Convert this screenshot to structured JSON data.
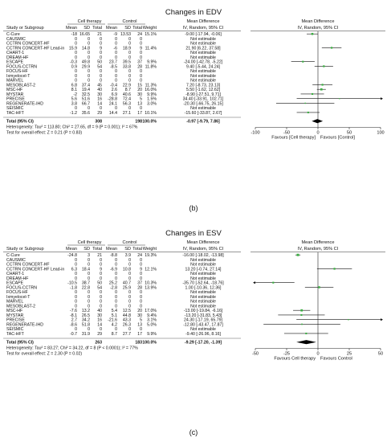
{
  "chart_data": [
    {
      "type": "forest",
      "title": "Changes in EDV",
      "caption": "(b)",
      "headers": {
        "group_exp": "Cell therapy",
        "group_ctrl": "Control",
        "study": "Study or Subgroup",
        "mean": "Mean",
        "sd": "SD",
        "total": "Total",
        "weight": "Weight",
        "md": "Mean Difference",
        "md_method": "IV, Random, 95% CI"
      },
      "rows": [
        {
          "study": "C-Cure",
          "e_mean": "-18",
          "e_sd": "16.65",
          "e_n": "21",
          "c_mean": "-9",
          "c_sd": "13.53",
          "c_n": "24",
          "weight": "15.1%",
          "ci": "-9.00 [-17.94, -0.06]",
          "md": -9.0,
          "lo": -17.94,
          "hi": -0.06
        },
        {
          "study": "CAUSMIC",
          "e_mean": "0",
          "e_sd": "0",
          "e_n": "0",
          "c_mean": "0",
          "c_sd": "0",
          "c_n": "0",
          "weight": "",
          "ci": "Not estimable"
        },
        {
          "study": "CCTRN CONCERT-HF",
          "e_mean": "0",
          "e_sd": "0",
          "e_n": "0",
          "c_mean": "0",
          "c_sd": "0",
          "c_n": "0",
          "weight": "",
          "ci": "Not estimable"
        },
        {
          "study": "CCTRN CONCERT-HF Lead-in",
          "e_mean": "15.9",
          "e_sd": "14.8",
          "e_n": "9",
          "c_mean": "-6",
          "c_sd": "18.9",
          "c_n": "9",
          "weight": "11.4%",
          "ci": "21.90 [6.22, 37.58]",
          "md": 21.9,
          "lo": 6.22,
          "hi": 37.58
        },
        {
          "study": "CHART-1",
          "e_mean": "0",
          "e_sd": "0",
          "e_n": "0",
          "c_mean": "0",
          "c_sd": "0",
          "c_n": "0",
          "weight": "",
          "ci": "Not estimable"
        },
        {
          "study": "DREAM-HF",
          "e_mean": "0",
          "e_sd": "0",
          "e_n": "0",
          "c_mean": "0",
          "c_sd": "0",
          "c_n": "0",
          "weight": "",
          "ci": "Not estimable"
        },
        {
          "study": "ESCAPE",
          "e_mean": "-0.3",
          "e_sd": "49.8",
          "e_n": "50",
          "c_mean": "23.7",
          "c_sd": "39.5",
          "c_n": "37",
          "weight": "9.9%",
          "ci": "-24.00 [-42.78, -5.22]",
          "md": -24.0,
          "lo": -42.78,
          "hi": -5.22
        },
        {
          "study": "FOCUS-CCTRN",
          "e_mean": "0.9",
          "e_sd": "29.9",
          "e_n": "54",
          "c_mean": "-8.5",
          "c_sd": "33.8",
          "c_n": "28",
          "weight": "11.8%",
          "ci": "9.40 [-5.44, 24.24]",
          "md": 9.4,
          "lo": -5.44,
          "hi": 24.24
        },
        {
          "study": "FOCUS-HF",
          "e_mean": "0",
          "e_sd": "0",
          "e_n": "0",
          "c_mean": "0",
          "c_sd": "0",
          "c_n": "0",
          "weight": "",
          "ci": "Not estimable"
        },
        {
          "study": "Ixmyelocel-T",
          "e_mean": "0",
          "e_sd": "0",
          "e_n": "0",
          "c_mean": "0",
          "c_sd": "0",
          "c_n": "0",
          "weight": "",
          "ci": "Not estimable"
        },
        {
          "study": "MARVEL",
          "e_mean": "0",
          "e_sd": "0",
          "e_n": "0",
          "c_mean": "0",
          "c_sd": "0",
          "c_n": "0",
          "weight": "",
          "ci": "Not estimable"
        },
        {
          "study": "MESOBLAST-2",
          "e_mean": "6.8",
          "e_sd": "37.4",
          "e_n": "45",
          "c_mean": "-0.4",
          "c_sd": "22.9",
          "c_n": "15",
          "weight": "11.3%",
          "ci": "7.20 [-8.73, 23.13]",
          "md": 7.2,
          "lo": -8.73,
          "hi": 23.13
        },
        {
          "study": "MSC-HF",
          "e_mean": "8.1",
          "e_sd": "19.4",
          "e_n": "40",
          "c_mean": "2.6",
          "c_sd": "8.7",
          "c_n": "20",
          "weight": "16.0%",
          "ci": "5.50 [-1.62, 12.62]",
          "md": 5.5,
          "lo": -1.62,
          "hi": 12.62
        },
        {
          "study": "MYSTAR",
          "e_mean": "-2",
          "e_sd": "32.5",
          "e_n": "30",
          "c_mean": "6.9",
          "c_sd": "40.6",
          "c_n": "30",
          "weight": "9.9%",
          "ci": "-8.90 [-27.51, 9.71]",
          "md": -8.9,
          "lo": -27.51,
          "hi": 9.71
        },
        {
          "study": "PRECISE",
          "e_mean": "5.6",
          "e_sd": "51.6",
          "e_n": "16",
          "c_mean": "-28.8",
          "c_sd": "72.4",
          "c_n": "5",
          "weight": "1.5%",
          "ci": "34.40 [-33.91, 102.71]",
          "md": 34.4,
          "lo": -33.91,
          "hi": 102.71
        },
        {
          "study": "REGENERATE-IHD",
          "e_mean": "3.8",
          "e_sd": "66.7",
          "e_n": "14",
          "c_mean": "24.1",
          "c_sd": "56.3",
          "c_n": "13",
          "weight": "3.0%",
          "ci": "-20.30 [-66.75, 26.15]",
          "md": -20.3,
          "lo": -66.75,
          "hi": 26.15
        },
        {
          "study": "SEISMIC",
          "e_mean": "0",
          "e_sd": "0",
          "e_n": "0",
          "c_mean": "0",
          "c_sd": "0",
          "c_n": "0",
          "weight": "",
          "ci": "Not estimable"
        },
        {
          "study": "TAC-HFT",
          "e_mean": "-1.2",
          "e_sd": "35.6",
          "e_n": "29",
          "c_mean": "14.4",
          "c_sd": "27.1",
          "c_n": "17",
          "weight": "10.1%",
          "ci": "-15.60 [-33.87, 2.67]",
          "md": -15.6,
          "lo": -33.87,
          "hi": 2.67
        }
      ],
      "total": {
        "label": "Total (95% CI)",
        "e_n": "308",
        "c_n": "198",
        "weight": "100.0%",
        "ci": "-0.97 [-9.79, 7.86]",
        "md": -0.97,
        "lo": -9.79,
        "hi": 7.86
      },
      "heterogeneity": "Heterogeneity: Tau² = 113.80; Chi² = 27.65, df = 9 (P = 0.001); I² = 67%",
      "overall_test": "Test for overall effect: Z = 0.21 (P = 0.83)",
      "xlim": [
        -100,
        100
      ],
      "ticks": [
        -100,
        -50,
        0,
        50,
        100
      ],
      "tick_labels": [
        "-100",
        "-50",
        "0",
        "50",
        "100"
      ],
      "favours_left": "Favours [Cell therapy]",
      "favours_right": "Favours [Control]"
    },
    {
      "type": "forest",
      "title": "Changes in ESV",
      "caption": "(c)",
      "headers": {
        "group_exp": "Cell therapy",
        "group_ctrl": "Control",
        "study": "Study or Subgroup",
        "mean": "Mean",
        "sd": "SD",
        "total": "Total",
        "weight": "Weight",
        "md": "Mean Difference",
        "md_method": "IV, Random, 95% CI"
      },
      "rows": [
        {
          "study": "C-Cure",
          "e_mean": "-24.8",
          "e_sd": "3",
          "e_n": "21",
          "c_mean": "-8.8",
          "c_sd": "3.9",
          "c_n": "24",
          "weight": "19.3%",
          "ci": "-16.00 [-18.02, -13.98]",
          "md": -16.0,
          "lo": -18.02,
          "hi": -13.98
        },
        {
          "study": "CAUSMIC",
          "e_mean": "0",
          "e_sd": "0",
          "e_n": "0",
          "c_mean": "0",
          "c_sd": "0",
          "c_n": "0",
          "weight": "",
          "ci": "Not estimable"
        },
        {
          "study": "CCTRN CONCERT-HF",
          "e_mean": "0",
          "e_sd": "0",
          "e_n": "0",
          "c_mean": "0",
          "c_sd": "0",
          "c_n": "0",
          "weight": "",
          "ci": "Not estimable"
        },
        {
          "study": "CCTRN CONCERT-HF Lead-in",
          "e_mean": "6.3",
          "e_sd": "18.4",
          "e_n": "9",
          "c_mean": "-6.9",
          "c_sd": "10.8",
          "c_n": "9",
          "weight": "12.1%",
          "ci": "13.20 [-0.74, 27.14]",
          "md": 13.2,
          "lo": -0.74,
          "hi": 27.14
        },
        {
          "study": "CHART-1",
          "e_mean": "0",
          "e_sd": "0",
          "e_n": "0",
          "c_mean": "0",
          "c_sd": "0",
          "c_n": "0",
          "weight": "",
          "ci": "Not estimable"
        },
        {
          "study": "DREAM-HF",
          "e_mean": "0",
          "e_sd": "0",
          "e_n": "0",
          "c_mean": "0",
          "c_sd": "0",
          "c_n": "0",
          "weight": "",
          "ci": "Not estimable"
        },
        {
          "study": "ESCAPE",
          "e_mean": "-10.5",
          "e_sd": "38.7",
          "e_n": "50",
          "c_mean": "25.2",
          "c_sd": "40.7",
          "c_n": "37",
          "weight": "10.3%",
          "ci": "-35.70 [-52.64, -18.76]",
          "md": -35.7,
          "lo": -52.64,
          "hi": -18.76
        },
        {
          "study": "FOCUS-CCTRN",
          "e_mean": "-1.8",
          "e_sd": "22.8",
          "e_n": "54",
          "c_mean": "-2.8",
          "c_sd": "25.9",
          "c_n": "28",
          "weight": "13.9%",
          "ci": "1.00 [-10.36, 12.36]",
          "md": 1.0,
          "lo": -10.36,
          "hi": 12.36
        },
        {
          "study": "FOCUS-HF",
          "e_mean": "0",
          "e_sd": "0",
          "e_n": "0",
          "c_mean": "0",
          "c_sd": "0",
          "c_n": "0",
          "weight": "",
          "ci": "Not estimable"
        },
        {
          "study": "Ixmyelocel-T",
          "e_mean": "0",
          "e_sd": "0",
          "e_n": "0",
          "c_mean": "0",
          "c_sd": "0",
          "c_n": "0",
          "weight": "",
          "ci": "Not estimable"
        },
        {
          "study": "MARVEL",
          "e_mean": "0",
          "e_sd": "0",
          "e_n": "0",
          "c_mean": "0",
          "c_sd": "0",
          "c_n": "0",
          "weight": "",
          "ci": "Not estimable"
        },
        {
          "study": "MESOBLAST-2",
          "e_mean": "0",
          "e_sd": "0",
          "e_n": "0",
          "c_mean": "0",
          "c_sd": "0",
          "c_n": "0",
          "weight": "",
          "ci": "Not estimable"
        },
        {
          "study": "MSC-HF",
          "e_mean": "-7.6",
          "e_sd": "13.2",
          "e_n": "40",
          "c_mean": "5.4",
          "c_sd": "12.5",
          "c_n": "20",
          "weight": "17.0%",
          "ci": "-13.00 [-19.84, -6.16]",
          "md": -13.0,
          "lo": -19.84,
          "hi": -6.16
        },
        {
          "study": "MYSTAR",
          "e_mean": "-8.1",
          "e_sd": "26.5",
          "e_n": "30",
          "c_mean": "5.1",
          "c_sd": "44.8",
          "c_n": "30",
          "weight": "9.4%",
          "ci": "-13.20 [-31.83, 5.43]",
          "md": -13.2,
          "lo": -31.83,
          "hi": 5.43
        },
        {
          "study": "PRECISE",
          "e_mean": "2.7",
          "e_sd": "34.2",
          "e_n": "16",
          "c_mean": "-21.6",
          "c_sd": "43.3",
          "c_n": "5",
          "weight": "3.1%",
          "ci": "24.30 [-17.19, 65.79]",
          "md": 24.3,
          "lo": -17.19,
          "hi": 65.79
        },
        {
          "study": "REGENERATE-IHD",
          "e_mean": "-8.6",
          "e_sd": "51.8",
          "e_n": "14",
          "c_mean": "4.2",
          "c_sd": "26.3",
          "c_n": "13",
          "weight": "5.0%",
          "ci": "-12.80 [-43.47, 17.87]",
          "md": -12.8,
          "lo": -43.47,
          "hi": 17.87
        },
        {
          "study": "SEISMIC",
          "e_mean": "0",
          "e_sd": "0",
          "e_n": "0",
          "c_mean": "0",
          "c_sd": "0",
          "c_n": "0",
          "weight": "",
          "ci": "Not estimable"
        },
        {
          "study": "TAC-HFT",
          "e_mean": "-0.7",
          "e_sd": "31.9",
          "e_n": "29",
          "c_mean": "8.7",
          "c_sd": "27.7",
          "c_n": "17",
          "weight": "9.9%",
          "ci": "-9.40 [-26.96, 8.16]",
          "md": -9.4,
          "lo": -26.96,
          "hi": 8.16
        }
      ],
      "total": {
        "label": "Total (95% CI)",
        "e_n": "263",
        "c_n": "183",
        "weight": "100.0%",
        "ci": "-9.29 [-17.20, -1.39]",
        "md": -9.29,
        "lo": -17.2,
        "hi": -1.39
      },
      "heterogeneity": "Heterogeneity: Tau² = 83.27; Chi² = 34.22, df = 8 (P < 0.0001); I² = 77%",
      "overall_test": "Test for overall effect: Z = 2.30 (P = 0.02)",
      "xlim": [
        -50,
        50
      ],
      "ticks": [
        -50,
        -25,
        0,
        25,
        50
      ],
      "tick_labels": [
        "-50",
        "-25",
        "0",
        "25",
        "50"
      ],
      "favours_left": "Favours Cell therapy",
      "favours_right": "Favours Control"
    }
  ]
}
